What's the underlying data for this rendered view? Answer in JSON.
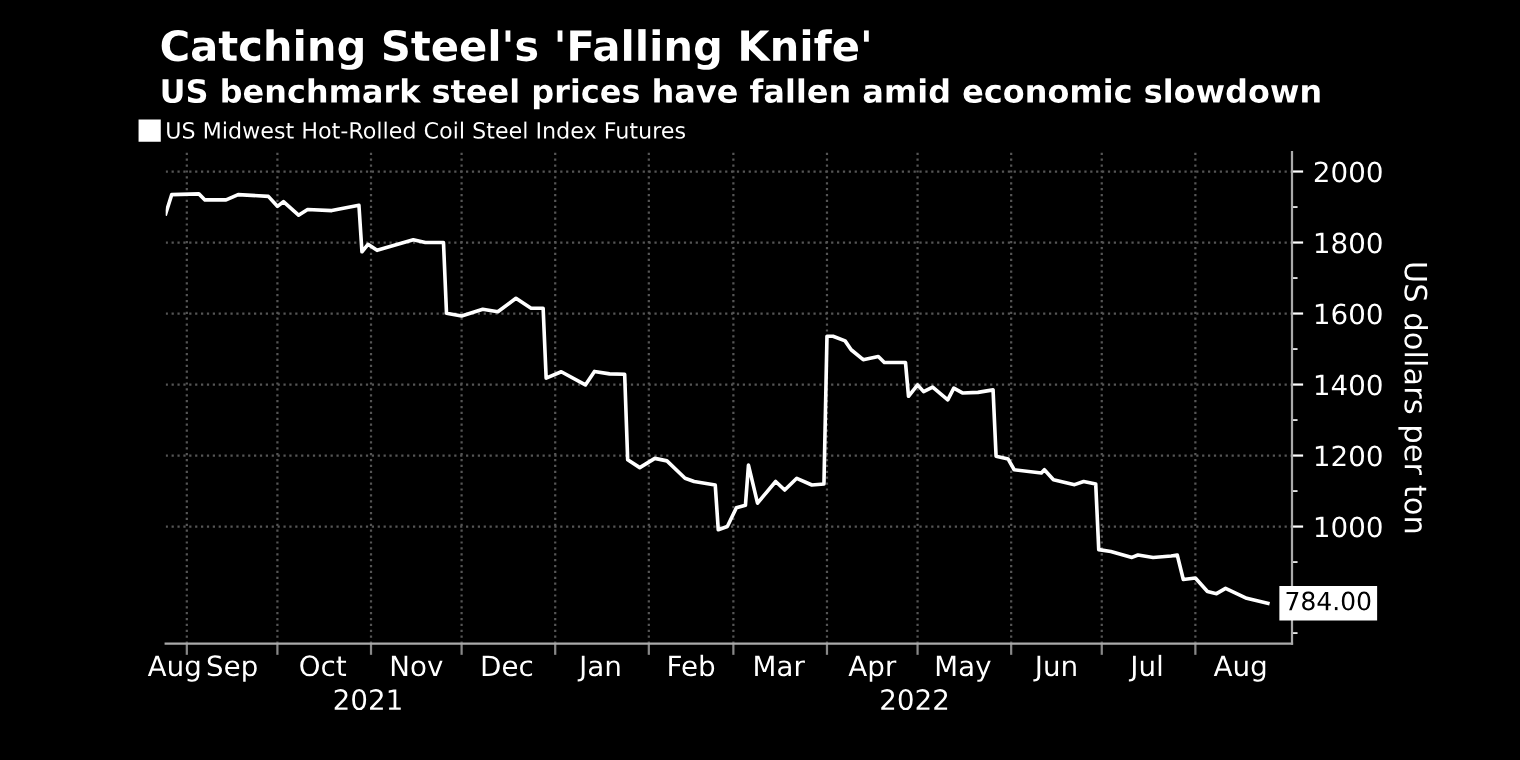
{
  "chart_data": {
    "type": "line",
    "title": "Catching Steel's 'Falling Knife'",
    "subtitle": "US benchmark steel prices have fallen amid economic slowdown",
    "ylabel": "US dollars per ton",
    "legend": "top left",
    "grid": true,
    "x": [
      "2021-08-25",
      "2021-08-27",
      "2021-09-05",
      "2021-09-07",
      "2021-09-14",
      "2021-09-18",
      "2021-09-28",
      "2021-10-01",
      "2021-10-03",
      "2021-10-08",
      "2021-10-11",
      "2021-10-19",
      "2021-10-28",
      "2021-10-29",
      "2021-10-31",
      "2021-11-03",
      "2021-11-15",
      "2021-11-19",
      "2021-11-25",
      "2021-11-26",
      "2021-12-01",
      "2021-12-08",
      "2021-12-13",
      "2021-12-19",
      "2021-12-24",
      "2021-12-28",
      "2021-12-29",
      "2022-01-03",
      "2022-01-11",
      "2022-01-14",
      "2022-01-19",
      "2022-01-24",
      "2022-01-25",
      "2022-01-29",
      "2022-02-03",
      "2022-02-07",
      "2022-02-13",
      "2022-02-16",
      "2022-02-23",
      "2022-02-24",
      "2022-02-27",
      "2022-03-02",
      "2022-03-05",
      "2022-03-06",
      "2022-03-09",
      "2022-03-15",
      "2022-03-18",
      "2022-03-22",
      "2022-03-27",
      "2022-03-31",
      "2022-04-01",
      "2022-04-03",
      "2022-04-07",
      "2022-04-09",
      "2022-04-13",
      "2022-04-18",
      "2022-04-20",
      "2022-04-27",
      "2022-04-28",
      "2022-05-01",
      "2022-05-03",
      "2022-05-06",
      "2022-05-11",
      "2022-05-13",
      "2022-05-16",
      "2022-05-21",
      "2022-05-26",
      "2022-05-27",
      "2022-05-31",
      "2022-06-02",
      "2022-06-11",
      "2022-06-12",
      "2022-06-15",
      "2022-06-22",
      "2022-06-25",
      "2022-06-29",
      "2022-06-30",
      "2022-07-04",
      "2022-07-11",
      "2022-07-13",
      "2022-07-18",
      "2022-07-24",
      "2022-07-26",
      "2022-07-28",
      "2022-08-01",
      "2022-08-05",
      "2022-08-08",
      "2022-08-11",
      "2022-08-18",
      "2022-08-25"
    ],
    "series": [
      {
        "name": "US Midwest Hot-Rolled Coil Steel Index Futures",
        "color": "#ffffff",
        "values": [
          1881,
          1935,
          1937,
          1920,
          1920,
          1935,
          1930,
          1902,
          1915,
          1877,
          1893,
          1890,
          1905,
          1774,
          1795,
          1778,
          1808,
          1800,
          1800,
          1601,
          1593,
          1612,
          1605,
          1643,
          1615,
          1615,
          1418,
          1436,
          1399,
          1437,
          1430,
          1429,
          1188,
          1166,
          1192,
          1185,
          1136,
          1127,
          1117,
          991,
          1000,
          1053,
          1060,
          1173,
          1066,
          1127,
          1103,
          1136,
          1117,
          1120,
          1536,
          1536,
          1523,
          1498,
          1470,
          1479,
          1462,
          1462,
          1367,
          1399,
          1380,
          1393,
          1357,
          1390,
          1376,
          1378,
          1385,
          1198,
          1190,
          1160,
          1151,
          1160,
          1132,
          1118,
          1127,
          1120,
          935,
          930,
          913,
          920,
          913,
          917,
          920,
          851,
          855,
          817,
          811,
          826,
          798,
          784
        ],
        "value_labels": [
          null,
          null,
          null,
          null,
          null,
          null,
          null,
          null,
          null,
          null,
          null,
          null,
          null,
          null,
          null,
          null,
          null,
          null,
          null,
          null,
          null,
          null,
          null,
          null,
          null,
          null,
          null,
          null,
          null,
          null,
          null,
          null,
          null,
          null,
          null,
          null,
          null,
          null,
          null,
          null,
          null,
          null,
          null,
          null,
          null,
          null,
          null,
          null,
          null,
          null,
          null,
          null,
          null,
          null,
          null,
          null,
          null,
          null,
          null,
          null,
          null,
          null,
          null,
          null,
          null,
          null,
          null,
          null,
          null,
          null,
          null,
          null,
          null,
          null,
          null,
          null,
          null,
          null,
          null,
          null,
          null,
          null,
          null,
          null,
          null,
          null,
          null,
          null,
          null,
          "784.00"
        ]
      }
    ],
    "xlim": [
      "2021-08-25",
      "2022-09-02"
    ],
    "xticks": [
      {
        "value": "2021-08-28",
        "label": "Aug"
      },
      {
        "value": "2021-09-01",
        "label": null
      },
      {
        "value": "2021-09-16",
        "label": "Sep"
      },
      {
        "value": "2021-10-01",
        "label": null
      },
      {
        "value": "2021-10-16",
        "label": "Oct"
      },
      {
        "value": "2021-11-01",
        "label": null
      },
      {
        "value": "2021-11-16",
        "label": "Nov"
      },
      {
        "value": "2021-12-01",
        "label": null
      },
      {
        "value": "2021-12-16",
        "label": "Dec"
      },
      {
        "value": "2022-01-01",
        "label": null
      },
      {
        "value": "2022-01-16",
        "label": "Jan"
      },
      {
        "value": "2022-02-01",
        "label": null
      },
      {
        "value": "2022-02-15",
        "label": "Feb"
      },
      {
        "value": "2022-03-01",
        "label": null
      },
      {
        "value": "2022-03-16",
        "label": "Mar"
      },
      {
        "value": "2022-04-01",
        "label": null
      },
      {
        "value": "2022-04-16",
        "label": "Apr"
      },
      {
        "value": "2022-05-01",
        "label": null
      },
      {
        "value": "2022-05-16",
        "label": "May"
      },
      {
        "value": "2022-06-01",
        "label": null
      },
      {
        "value": "2022-06-16",
        "label": "Jun"
      },
      {
        "value": "2022-07-01",
        "label": null
      },
      {
        "value": "2022-07-16",
        "label": "Jul"
      },
      {
        "value": "2022-08-01",
        "label": null
      },
      {
        "value": "2022-08-16",
        "label": "Aug"
      }
    ],
    "x2lim": [
      "2021-08-25",
      "2022-09-02"
    ],
    "x2ticks": [
      {
        "value": "2021-10-31",
        "label": "2021"
      },
      {
        "value": "2022-04-30",
        "label": "2022"
      }
    ],
    "ylim": [
      670,
      2055
    ],
    "yticks": [
      {
        "value": 700,
        "label": null
      },
      {
        "value": 800,
        "label": null
      },
      {
        "value": 900,
        "label": null
      },
      1000,
      {
        "value": 1100,
        "label": null
      },
      1200,
      {
        "value": 1300,
        "label": null
      },
      1400,
      {
        "value": 1500,
        "label": null
      },
      1600,
      {
        "value": 1700,
        "label": null
      },
      1800,
      {
        "value": 1900,
        "label": null
      },
      2000
    ]
  }
}
